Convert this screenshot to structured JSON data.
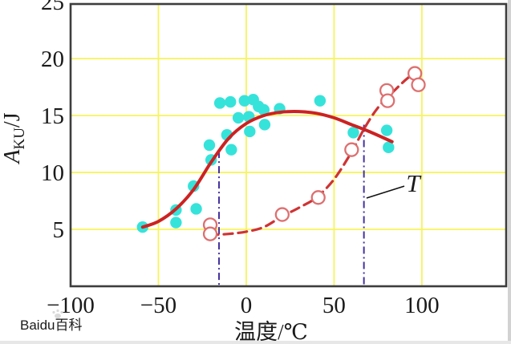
{
  "watermark": {
    "text": "Baidu百科",
    "color": "#d7d7d7"
  },
  "chart_data": {
    "type": "scatter",
    "title": "",
    "xlabel": "温度/℃",
    "ylabel_base": "A",
    "ylabel_sub": "KU",
    "ylabel_unit": "/J",
    "xlim": [
      -100,
      148
    ],
    "ylim": [
      0,
      24.8
    ],
    "grid": {
      "on": true,
      "color": "#f7f45c",
      "x_lines": [
        -50,
        0,
        50,
        100
      ],
      "y_lines": [
        5,
        10,
        15,
        20
      ]
    },
    "x_ticks": [
      {
        "value": -100,
        "label": "−100"
      },
      {
        "value": -50,
        "label": "−50"
      },
      {
        "value": 0,
        "label": "0"
      },
      {
        "value": 50,
        "label": "50"
      },
      {
        "value": 100,
        "label": "100"
      }
    ],
    "y_ticks": [
      {
        "value": 5,
        "label": "5"
      },
      {
        "value": 10,
        "label": "10"
      },
      {
        "value": 15,
        "label": "15"
      },
      {
        "value": 20,
        "label": "20"
      },
      {
        "value": 25,
        "label": "25"
      }
    ],
    "series": [
      {
        "name": "filled-scatter",
        "kind": "scatter",
        "marker": "filled-circle",
        "color": "#36e3da",
        "points": [
          [
            -59,
            5.2
          ],
          [
            -40,
            6.7
          ],
          [
            -40,
            5.6
          ],
          [
            -30,
            8.8
          ],
          [
            -28.5,
            6.8
          ],
          [
            -21,
            12.4
          ],
          [
            -20,
            11.1
          ],
          [
            -11,
            13.3
          ],
          [
            -8.5,
            12.0
          ],
          [
            2,
            13.6
          ],
          [
            -15,
            16.1
          ],
          [
            -9,
            16.2
          ],
          [
            -1,
            16.3
          ],
          [
            4,
            16.4
          ],
          [
            7,
            15.8
          ],
          [
            10,
            15.5
          ],
          [
            -4.5,
            14.8
          ],
          [
            1.5,
            14.9
          ],
          [
            10.5,
            14.2
          ],
          [
            19,
            15.6
          ],
          [
            42,
            16.3
          ],
          [
            61,
            13.5
          ],
          [
            80,
            13.7
          ],
          [
            81,
            12.2
          ]
        ]
      },
      {
        "name": "open-scatter",
        "kind": "scatter",
        "marker": "open-circle",
        "color": "#dd7070",
        "points": [
          [
            -20.5,
            5.4
          ],
          [
            -20.5,
            4.6
          ],
          [
            20.5,
            6.3
          ],
          [
            41,
            7.8
          ],
          [
            60,
            12.0
          ],
          [
            80,
            17.2
          ],
          [
            80.5,
            16.3
          ],
          [
            96,
            18.7
          ],
          [
            98,
            17.7
          ]
        ]
      },
      {
        "name": "solid-curve",
        "kind": "line",
        "style": "solid",
        "color": "#cc2222",
        "points": [
          [
            -59,
            5.2
          ],
          [
            -50,
            5.7
          ],
          [
            -40,
            6.8
          ],
          [
            -30,
            8.5
          ],
          [
            -20,
            10.9
          ],
          [
            -10,
            13.0
          ],
          [
            0,
            14.3
          ],
          [
            10,
            15.0
          ],
          [
            20,
            15.3
          ],
          [
            30,
            15.35
          ],
          [
            40,
            15.2
          ],
          [
            50,
            14.8
          ],
          [
            60,
            14.2
          ],
          [
            70,
            13.6
          ],
          [
            83,
            12.7
          ]
        ]
      },
      {
        "name": "dashed-curve",
        "kind": "line",
        "style": "dashed",
        "color": "#cf3333",
        "points": [
          [
            -21,
            4.5
          ],
          [
            -10,
            4.6
          ],
          [
            0,
            4.8
          ],
          [
            10,
            5.2
          ],
          [
            20,
            6.1
          ],
          [
            30,
            6.9
          ],
          [
            40,
            7.8
          ],
          [
            50,
            9.4
          ],
          [
            60,
            11.8
          ],
          [
            67,
            13.8
          ],
          [
            75,
            15.7
          ],
          [
            85,
            17.3
          ],
          [
            92,
            18.3
          ],
          [
            98.5,
            19.0
          ]
        ]
      }
    ],
    "vlines": [
      {
        "x": -15.5,
        "y_top": 11.9,
        "style": "dash-dot",
        "color": "#4633a0"
      },
      {
        "x": 67,
        "y_top": 14.2,
        "style": "dash-dot",
        "color": "#4633a0"
      }
    ],
    "annotation": {
      "text": "T",
      "x": 94.5,
      "y": 9.2,
      "leader": [
        [
          68.5,
          7.75
        ],
        [
          90,
          8.8
        ]
      ]
    },
    "legend": {
      "visible": false
    }
  }
}
